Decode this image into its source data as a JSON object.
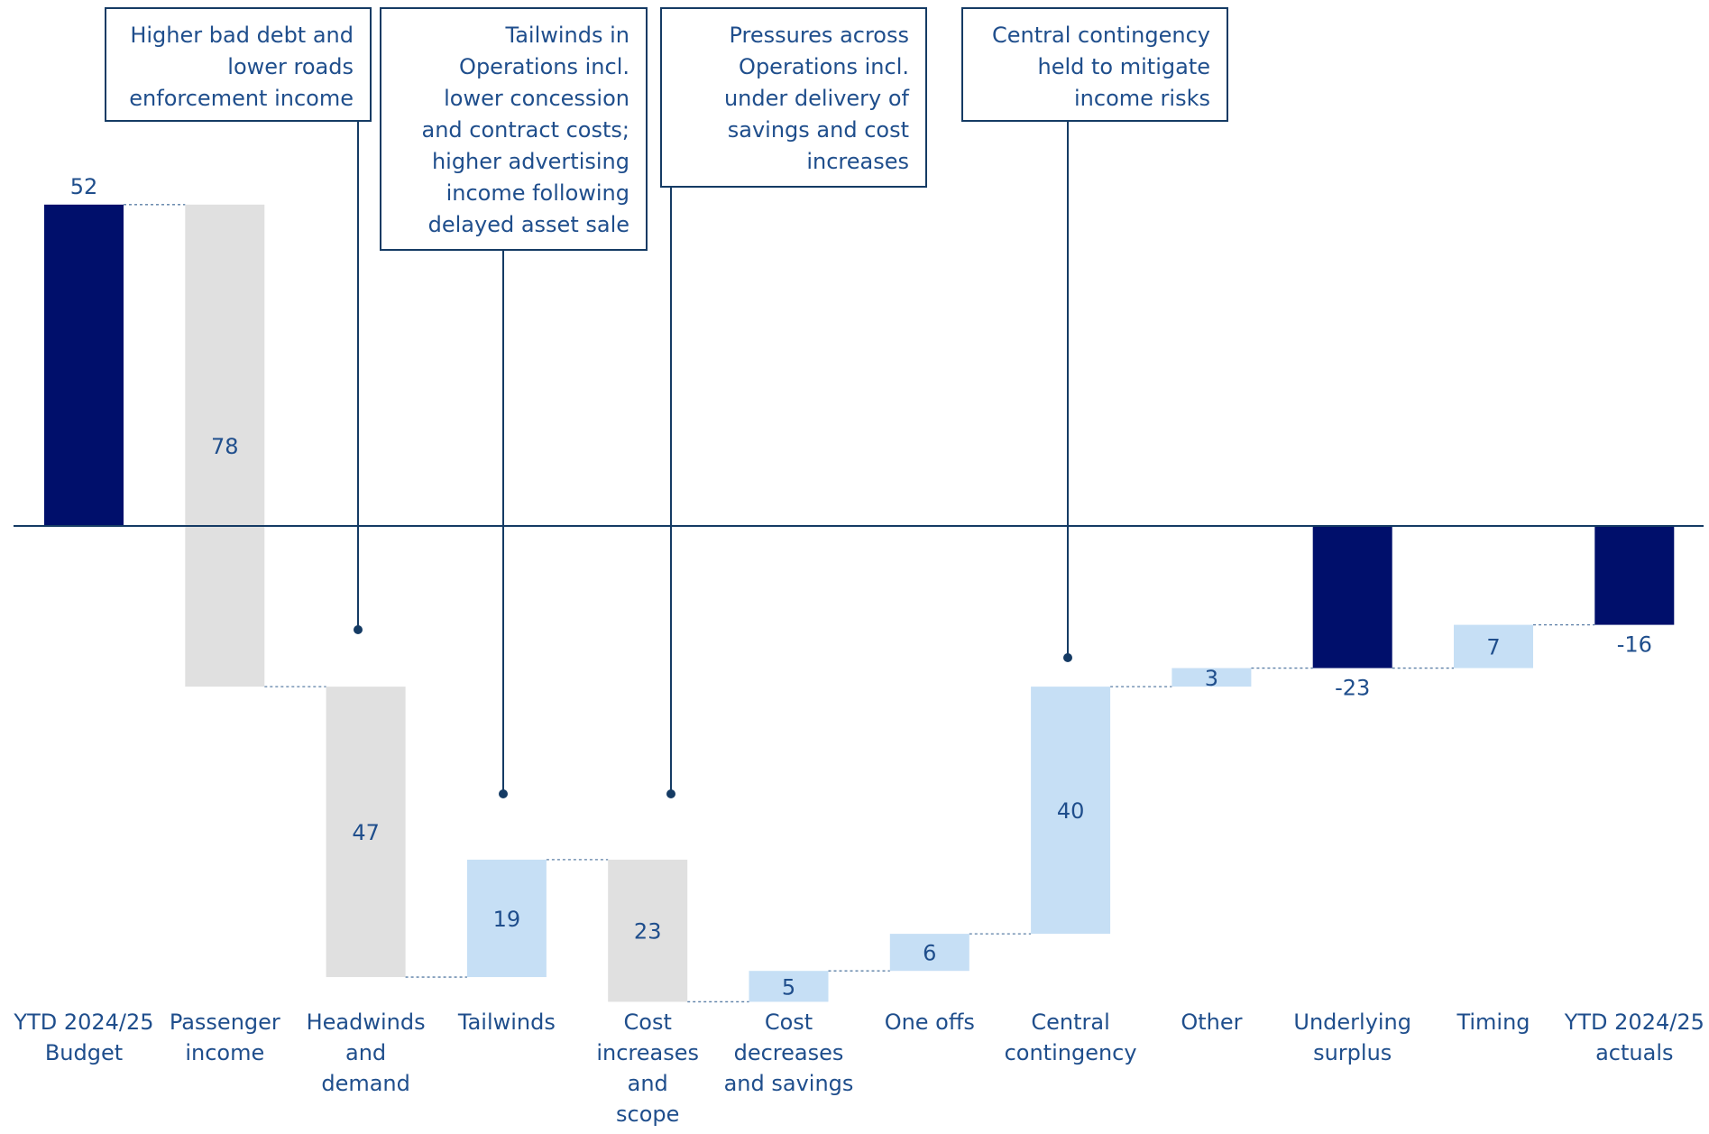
{
  "chart_data": {
    "type": "waterfall",
    "title": "",
    "xlabel": "",
    "ylabel": "",
    "ylim": [
      -110,
      60
    ],
    "grid": false,
    "legend": "none",
    "colors": {
      "total": "#000f6b",
      "negative": "#e0e0e0",
      "positive": "#c6dff5",
      "label": "#1f4e8c",
      "callout_border": "#153b64",
      "zero_line": "#153b64",
      "connector": "#5b7fa6"
    },
    "bars": [
      {
        "category": [
          "YTD 2024/25",
          "Budget"
        ],
        "label": "52",
        "kind": "total",
        "start": 0,
        "end": 52
      },
      {
        "category": [
          "Passenger",
          "income"
        ],
        "label": "78",
        "kind": "negative",
        "start": 52,
        "end": -26
      },
      {
        "category": [
          "Headwinds",
          "and",
          "demand"
        ],
        "label": "47",
        "kind": "negative",
        "start": -26,
        "end": -73
      },
      {
        "category": [
          "Tailwinds"
        ],
        "label": "19",
        "kind": "positive",
        "start": -73,
        "end": -54
      },
      {
        "category": [
          "Cost",
          "increases",
          "and",
          "scope"
        ],
        "label": "23",
        "kind": "negative",
        "start": -54,
        "end": -77
      },
      {
        "category": [
          "Cost",
          "decreases",
          "and savings"
        ],
        "label": "5",
        "kind": "positive",
        "start": -77,
        "end": -72
      },
      {
        "category": [
          "One offs"
        ],
        "label": "6",
        "kind": "positive",
        "start": -72,
        "end": -66
      },
      {
        "category": [
          "Central",
          "contingency"
        ],
        "label": "40",
        "kind": "positive",
        "start": -66,
        "end": -26
      },
      {
        "category": [
          "Other"
        ],
        "label": "3",
        "kind": "positive",
        "start": -26,
        "end": -23
      },
      {
        "category": [
          "Underlying",
          "surplus"
        ],
        "label": "-23",
        "kind": "total",
        "start": 0,
        "end": -23
      },
      {
        "category": [
          "Timing"
        ],
        "label": "7",
        "kind": "positive",
        "start": -23,
        "end": -16
      },
      {
        "category": [
          "YTD 2024/25",
          "actuals"
        ],
        "label": "-16",
        "kind": "total",
        "start": 0,
        "end": -16
      }
    ],
    "annotations": [
      {
        "target": 2,
        "lines": [
          "Higher bad debt and",
          "lower roads",
          "enforcement income"
        ]
      },
      {
        "target": 3,
        "lines": [
          "Tailwinds in",
          "Operations incl.",
          "lower concession",
          "and contract costs;",
          "higher advertising",
          "income following",
          "delayed asset sale"
        ]
      },
      {
        "target": 4,
        "lines": [
          "Pressures across",
          "Operations incl.",
          "under delivery of",
          "savings and cost",
          "increases"
        ]
      },
      {
        "target": 7,
        "lines": [
          "Central contingency",
          "held to mitigate",
          "income risks"
        ]
      }
    ]
  }
}
